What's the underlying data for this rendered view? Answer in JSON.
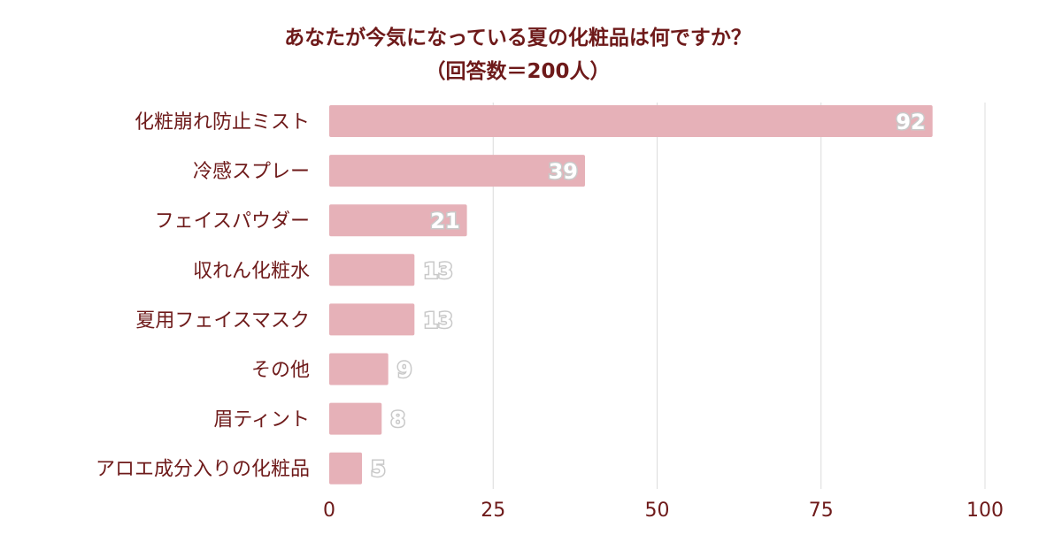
{
  "chart_data": {
    "type": "bar",
    "orientation": "horizontal",
    "title": "あなたが今気になっている夏の化粧品は何ですか？",
    "subtitle": "（回答数＝200人）",
    "categories": [
      "化粧崩れ防止ミスト",
      "冷感スプレー",
      "フェイスパウダー",
      "収れん化粧水",
      "夏用フェイスマスク",
      "その他",
      "眉ティント",
      "アロエ成分入りの化粧品"
    ],
    "values": [
      92,
      39,
      21,
      13,
      13,
      9,
      8,
      5
    ],
    "value_labels": [
      "92",
      "39",
      "21",
      "13",
      "13",
      "9",
      "8",
      "5"
    ],
    "xlim": [
      0,
      100
    ],
    "xticks": [
      0,
      25,
      50,
      75,
      100
    ],
    "xtick_labels": [
      "0",
      "25",
      "50",
      "75",
      "100"
    ],
    "xlabel": "",
    "ylabel": "",
    "grid": true,
    "legend": "none",
    "colors": {
      "bar": "#e6b1b8",
      "text": "#6e1a1a",
      "grid": "#dcdcdc"
    }
  }
}
